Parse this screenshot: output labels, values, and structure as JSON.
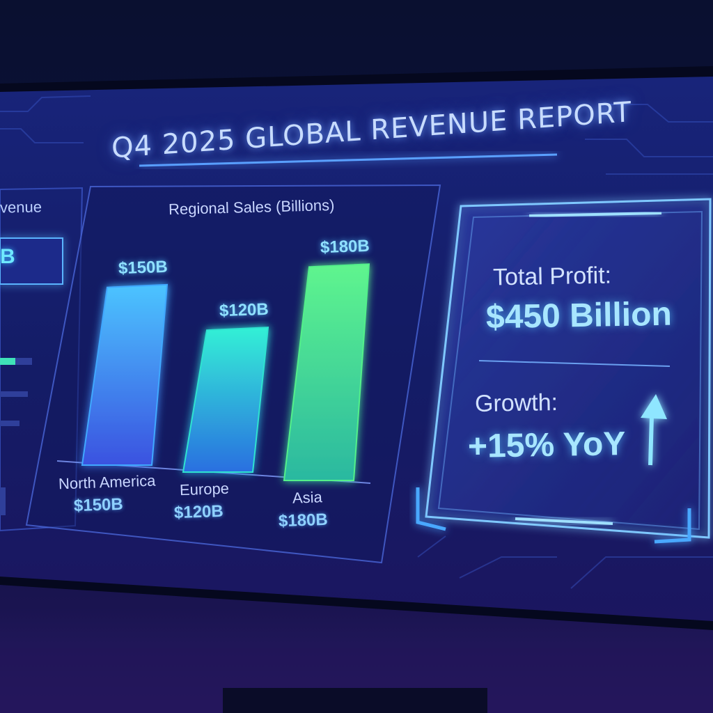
{
  "dashboard": {
    "title": "Q4 2025 GLOBAL REVENUE REPORT",
    "left_panel_partial": {
      "label": "venue",
      "badge": "B"
    }
  },
  "chart_data": {
    "type": "bar",
    "title": "Regional Sales (Billions)",
    "categories": [
      "North America",
      "Europe",
      "Asia"
    ],
    "values": [
      150,
      120,
      180
    ],
    "value_labels": [
      "$150B",
      "$120B",
      "$180B"
    ],
    "category_value_labels": [
      "$150B",
      "$120B",
      "$180B"
    ],
    "colors": [
      "#3fa8ff",
      "#2fe3d0",
      "#52f08a"
    ],
    "ylim": [
      0,
      200
    ],
    "grid": false
  },
  "kpi": {
    "profit_label": "Total Profit:",
    "profit_value": "$450 Billion",
    "growth_label": "Growth:",
    "growth_value": "+15% YoY",
    "arrow_icon": "arrow-up-icon"
  }
}
